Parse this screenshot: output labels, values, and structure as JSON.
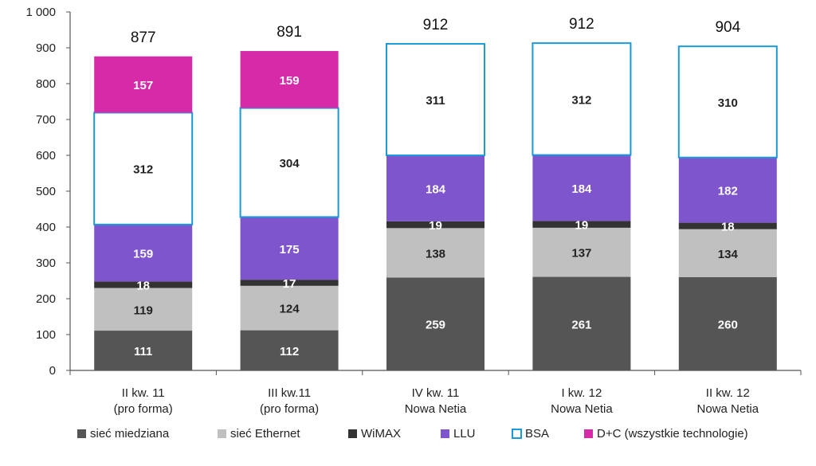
{
  "chart_data": {
    "type": "bar",
    "stacked": true,
    "title": "",
    "xlabel": "",
    "ylabel": "",
    "ylim": [
      0,
      1000
    ],
    "yticks": [
      "0",
      "100",
      "200",
      "300",
      "400",
      "500",
      "600",
      "700",
      "800",
      "900",
      "1 000"
    ],
    "ytick_values": [
      0,
      100,
      200,
      300,
      400,
      500,
      600,
      700,
      800,
      900,
      1000
    ],
    "categories": [
      [
        "II kw. 11",
        "(pro forma)"
      ],
      [
        "III kw.11",
        "(pro forma)"
      ],
      [
        "IV kw. 11",
        "Nowa Netia"
      ],
      [
        "I kw. 12",
        "Nowa Netia"
      ],
      [
        "II kw. 12",
        "Nowa Netia"
      ]
    ],
    "totals": [
      "877",
      "891",
      "912",
      "912",
      "904"
    ],
    "legend_position": "bottom",
    "series": [
      {
        "name": "sieć miedziana",
        "color": "#555555",
        "label_color": "#ffffff",
        "values": [
          111,
          112,
          259,
          261,
          260
        ]
      },
      {
        "name": "sieć Ethernet",
        "color": "#c0c0c0",
        "label_color": "#222222",
        "values": [
          119,
          124,
          138,
          137,
          134
        ]
      },
      {
        "name": "WiMAX",
        "color": "#333333",
        "label_color": "#ffffff",
        "values": [
          18,
          17,
          19,
          19,
          18
        ]
      },
      {
        "name": "LLU",
        "color": "#7e55cc",
        "label_color": "#ffffff",
        "values": [
          159,
          175,
          184,
          184,
          182
        ]
      },
      {
        "name": "BSA",
        "color": "#ffffff",
        "border": "#1a9ad6",
        "label_color": "#222222",
        "values": [
          312,
          304,
          311,
          312,
          310
        ]
      },
      {
        "name": "D+C (wszystkie technologie)",
        "color": "#d62aa8",
        "label_color": "#ffffff",
        "values": [
          157,
          159,
          0,
          0,
          0
        ]
      }
    ]
  }
}
